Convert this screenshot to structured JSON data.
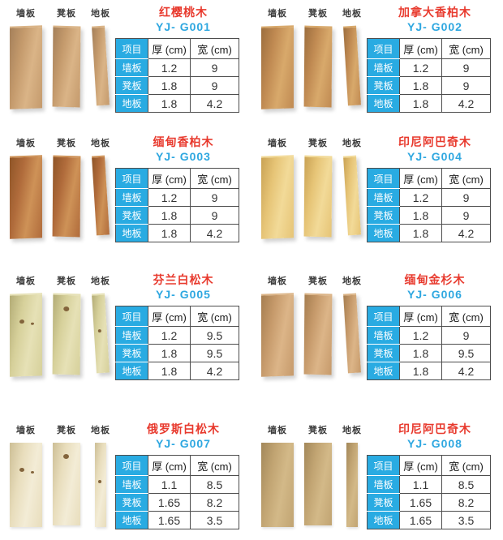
{
  "colors": {
    "accent_cyan": "#29ABE2",
    "title_red": "#E83A2E",
    "model_blue": "#2EA7E0",
    "table_border": "#4D4D4D"
  },
  "plank_labels": [
    "墙板",
    "凳板",
    "地板"
  ],
  "table_header": {
    "item": "项目",
    "thickness": "厚 (cm)",
    "width": "宽 (cm)"
  },
  "products": [
    {
      "name": "红樱桃木",
      "model": "YJ- G001",
      "wood": {
        "base": "#C49A6C",
        "light": "#DAB487",
        "dark": "#A5805A",
        "style": "skewed",
        "knots": false
      },
      "rows": [
        {
          "label": "墙板",
          "thickness": "1.2",
          "width": "9"
        },
        {
          "label": "凳板",
          "thickness": "1.8",
          "width": "9"
        },
        {
          "label": "地板",
          "thickness": "1.8",
          "width": "4.2"
        }
      ]
    },
    {
      "name": "加拿大香柏木",
      "model": "YJ- G002",
      "wood": {
        "base": "#C08A52",
        "light": "#D8A96B",
        "dark": "#9C6E3E",
        "style": "skewed",
        "knots": false
      },
      "rows": [
        {
          "label": "墙板",
          "thickness": "1.2",
          "width": "9"
        },
        {
          "label": "凳板",
          "thickness": "1.8",
          "width": "9"
        },
        {
          "label": "地板",
          "thickness": "1.8",
          "width": "4.2"
        }
      ]
    },
    {
      "name": "缅甸香柏木",
      "model": "YJ- G003",
      "wood": {
        "base": "#B06B3B",
        "light": "#CE9257",
        "dark": "#8F5527",
        "style": "skewed",
        "knots": false
      },
      "rows": [
        {
          "label": "墙板",
          "thickness": "1.2",
          "width": "9"
        },
        {
          "label": "凳板",
          "thickness": "1.8",
          "width": "9"
        },
        {
          "label": "地板",
          "thickness": "1.8",
          "width": "4.2"
        }
      ]
    },
    {
      "name": "印尼阿巴奇木",
      "model": "YJ- G004",
      "wood": {
        "base": "#E6C476",
        "light": "#F2DA98",
        "dark": "#C9A254",
        "style": "skewed",
        "knots": false
      },
      "rows": [
        {
          "label": "墙板",
          "thickness": "1.2",
          "width": "9"
        },
        {
          "label": "凳板",
          "thickness": "1.8",
          "width": "9"
        },
        {
          "label": "地板",
          "thickness": "1.8",
          "width": "4.2"
        }
      ]
    },
    {
      "name": "芬兰白松木",
      "model": "YJ- G005",
      "wood": {
        "base": "#D6D09A",
        "light": "#E6E1B6",
        "dark": "#B3AC76",
        "style": "skewed",
        "knots": true
      },
      "rows": [
        {
          "label": "墙板",
          "thickness": "1.2",
          "width": "9.5"
        },
        {
          "label": "凳板",
          "thickness": "1.8",
          "width": "9.5"
        },
        {
          "label": "地板",
          "thickness": "1.8",
          "width": "4.2"
        }
      ]
    },
    {
      "name": "缅甸金杉木",
      "model": "YJ- G006",
      "wood": {
        "base": "#C69A6B",
        "light": "#DCB588",
        "dark": "#A67E50",
        "style": "skewed",
        "knots": false
      },
      "rows": [
        {
          "label": "墙板",
          "thickness": "1.2",
          "width": "9"
        },
        {
          "label": "凳板",
          "thickness": "1.8",
          "width": "9.5"
        },
        {
          "label": "地板",
          "thickness": "1.8",
          "width": "4.2"
        }
      ]
    },
    {
      "name": "俄罗斯白松木",
      "model": "YJ- G007",
      "wood": {
        "base": "#E8DDBC",
        "light": "#F3ECD6",
        "dark": "#CDBF96",
        "style": "straight",
        "knots": true
      },
      "rows": [
        {
          "label": "墙板",
          "thickness": "1.1",
          "width": "8.5"
        },
        {
          "label": "凳板",
          "thickness": "1.65",
          "width": "8.2"
        },
        {
          "label": "地板",
          "thickness": "1.65",
          "width": "3.5"
        }
      ]
    },
    {
      "name": "印尼阿巴奇木",
      "model": "YJ- G008",
      "wood": {
        "base": "#C1A472",
        "light": "#D3B988",
        "dark": "#A3885A",
        "style": "straight",
        "knots": false
      },
      "rows": [
        {
          "label": "墙板",
          "thickness": "1.1",
          "width": "8.5"
        },
        {
          "label": "凳板",
          "thickness": "1.65",
          "width": "8.2"
        },
        {
          "label": "地板",
          "thickness": "1.65",
          "width": "3.5"
        }
      ]
    }
  ]
}
